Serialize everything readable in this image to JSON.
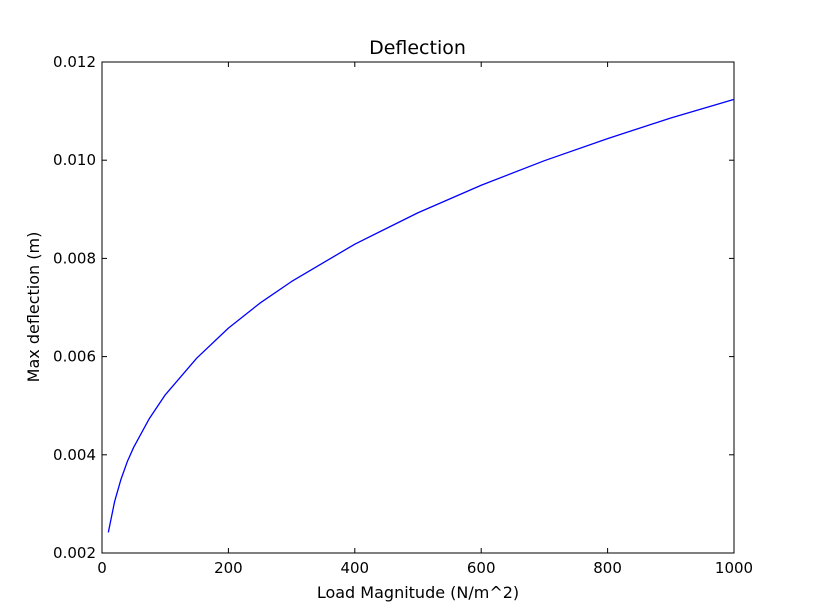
{
  "chart_data": {
    "type": "line",
    "title": "Deflection",
    "xlabel": "Load Magnitude (N/m^2)",
    "ylabel": "Max deflection (m)",
    "xlim": [
      0,
      1000
    ],
    "ylim": [
      0.002,
      0.012
    ],
    "x_ticks": [
      "0",
      "200",
      "400",
      "600",
      "800",
      "1000"
    ],
    "y_ticks": [
      "0.002",
      "0.004",
      "0.006",
      "0.008",
      "0.010",
      "0.012"
    ],
    "grid": false,
    "series": [
      {
        "color": "#0000ff",
        "x": [
          10,
          20,
          30,
          40,
          50,
          75,
          100,
          150,
          200,
          250,
          300,
          400,
          500,
          600,
          700,
          800,
          900,
          1000
        ],
        "y": [
          0.00242,
          0.00305,
          0.0035,
          0.00386,
          0.00415,
          0.00474,
          0.00522,
          0.00597,
          0.00658,
          0.00709,
          0.00753,
          0.00829,
          0.00893,
          0.00949,
          0.00999,
          0.01044,
          0.01086,
          0.01124
        ]
      }
    ]
  }
}
